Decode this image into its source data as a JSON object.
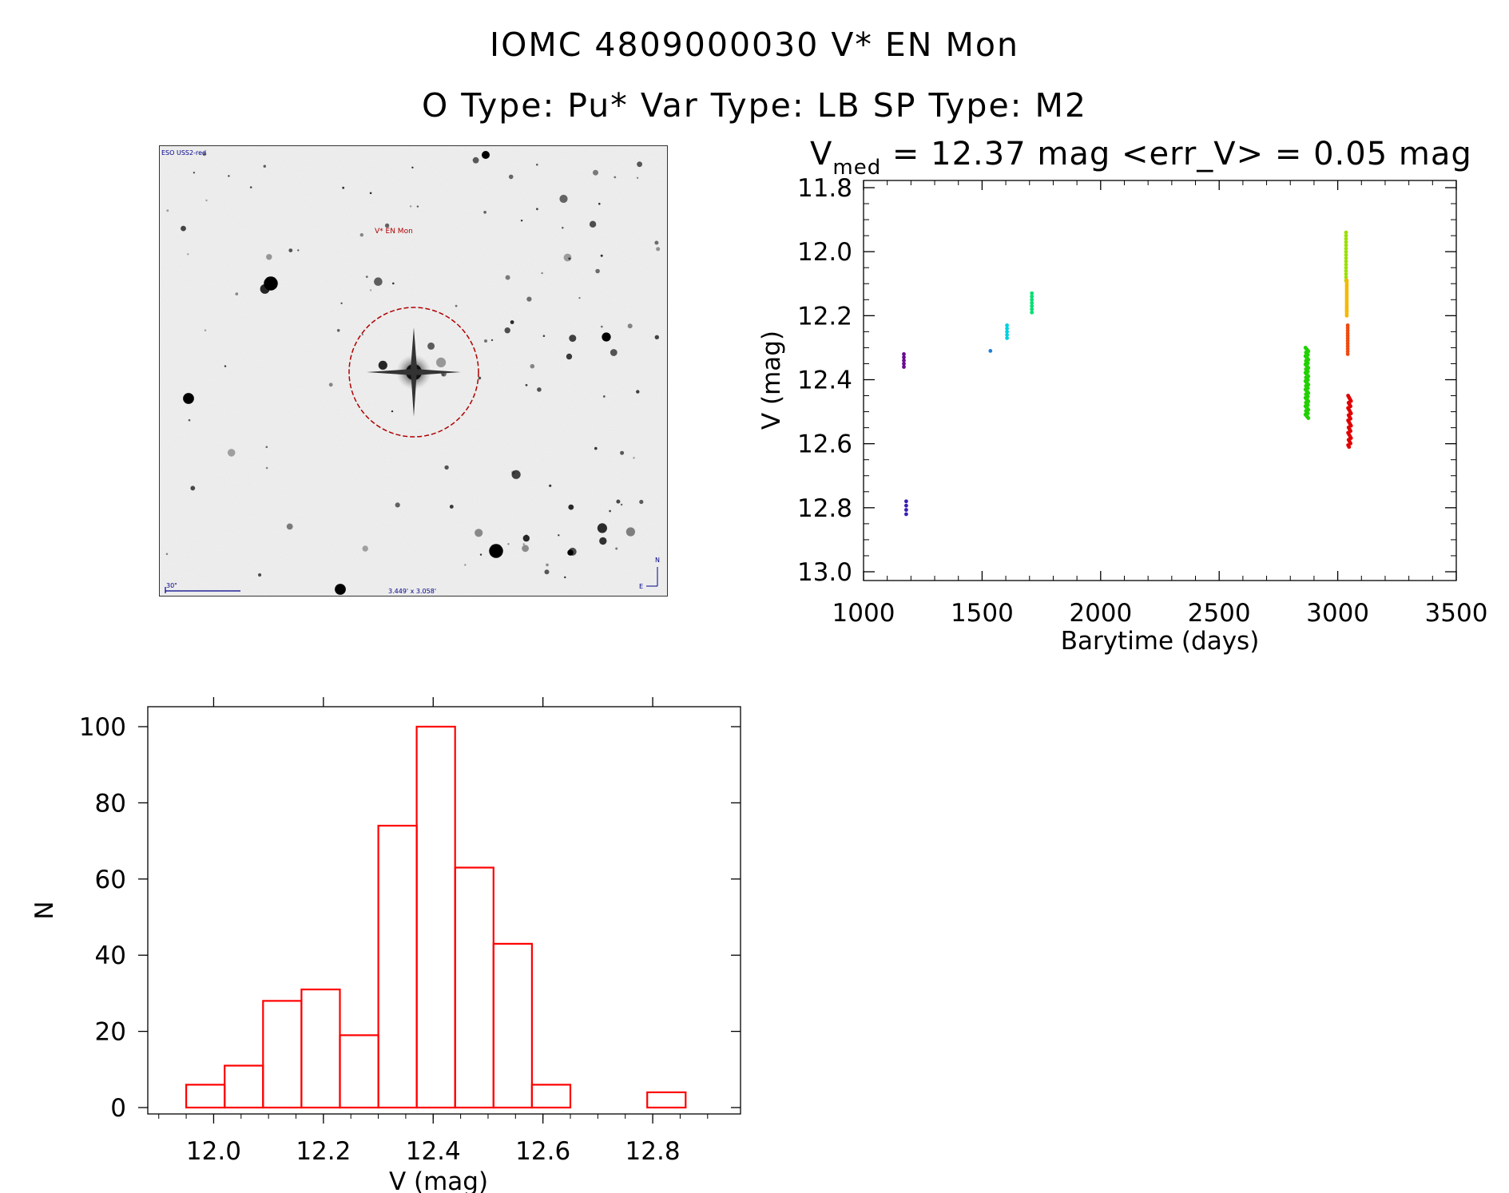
{
  "title": {
    "line1": "IOMC 4809000030    V* EN Mon",
    "line2": "O Type: Pu*   Var Type: LB   SP Type: M2"
  },
  "finder_chart": {
    "survey_label": "ESO USS2-red",
    "target_label": "V* EN Mon",
    "scale_label": "30\"",
    "fov_label": "3.449' x 3.058'",
    "north_label": "N",
    "east_label": "E",
    "colors": {
      "circle": "#b00000",
      "label": "#b00000",
      "scale": "#00008b"
    }
  },
  "chart_data": [
    {
      "type": "scatter",
      "title_parts": {
        "v": "V",
        "sub": "med",
        "rest": " = 12.37 mag <err_V> = 0.05 mag"
      },
      "xlabel": "Barytime (days)",
      "ylabel": "V (mag)",
      "xlim": [
        1000,
        3500
      ],
      "ylim": [
        13.0,
        11.8
      ],
      "y_inverted": true,
      "xticks": [
        1000,
        1500,
        2000,
        2500,
        3000,
        3500
      ],
      "yticks": [
        11.8,
        12.0,
        12.2,
        12.4,
        12.6,
        12.8,
        13.0
      ],
      "xtick_labels": [
        "1000",
        "1500",
        "2000",
        "2500",
        "3000",
        "3500"
      ],
      "ytick_labels": [
        "11.8",
        "12.0",
        "12.2",
        "12.4",
        "12.6",
        "12.8",
        "13.0"
      ],
      "groups": [
        {
          "x": 1170,
          "y_min": 12.32,
          "y_max": 12.36,
          "n": 5,
          "color": "#6a0d91"
        },
        {
          "x": 1180,
          "y_min": 12.78,
          "y_max": 12.82,
          "n": 4,
          "color": "#3a1fb5"
        },
        {
          "x": 1535,
          "y_min": 12.31,
          "y_max": 12.31,
          "n": 1,
          "color": "#1e7fd9"
        },
        {
          "x": 1605,
          "y_min": 12.23,
          "y_max": 12.27,
          "n": 5,
          "color": "#00d0e0"
        },
        {
          "x": 1710,
          "y_min": 12.13,
          "y_max": 12.19,
          "n": 7,
          "color": "#00e070"
        },
        {
          "x": 2870,
          "y_min": 12.3,
          "y_max": 12.52,
          "n": 60,
          "color": "#22d000"
        },
        {
          "x": 3035,
          "y_min": 11.94,
          "y_max": 12.09,
          "n": 16,
          "color": "#9ae000"
        },
        {
          "x": 3038,
          "y_min": 12.09,
          "y_max": 12.2,
          "n": 18,
          "color": "#f5b800"
        },
        {
          "x": 3042,
          "y_min": 12.23,
          "y_max": 12.32,
          "n": 12,
          "color": "#ee4a10"
        },
        {
          "x": 3050,
          "y_min": 12.45,
          "y_max": 12.61,
          "n": 30,
          "color": "#e00000"
        }
      ]
    },
    {
      "type": "bar",
      "style": "histogram",
      "xlabel": "V (mag)",
      "ylabel": "N",
      "xlim": [
        11.88,
        12.96
      ],
      "ylim": [
        0,
        100
      ],
      "xticks": [
        12.0,
        12.2,
        12.4,
        12.6,
        12.8
      ],
      "xtick_labels": [
        "12.0",
        "12.2",
        "12.4",
        "12.6",
        "12.8"
      ],
      "yticks": [
        0,
        20,
        40,
        60,
        80,
        100
      ],
      "ytick_labels": [
        "0",
        "20",
        "40",
        "60",
        "80",
        "100"
      ],
      "bin_edges": [
        11.95,
        12.02,
        12.09,
        12.16,
        12.23,
        12.3,
        12.37,
        12.44,
        12.51,
        12.58,
        12.65,
        12.72,
        12.79,
        12.86
      ],
      "counts": [
        6,
        11,
        28,
        31,
        19,
        74,
        100,
        63,
        43,
        6,
        0,
        0,
        4
      ],
      "color": "#ff0000"
    }
  ]
}
